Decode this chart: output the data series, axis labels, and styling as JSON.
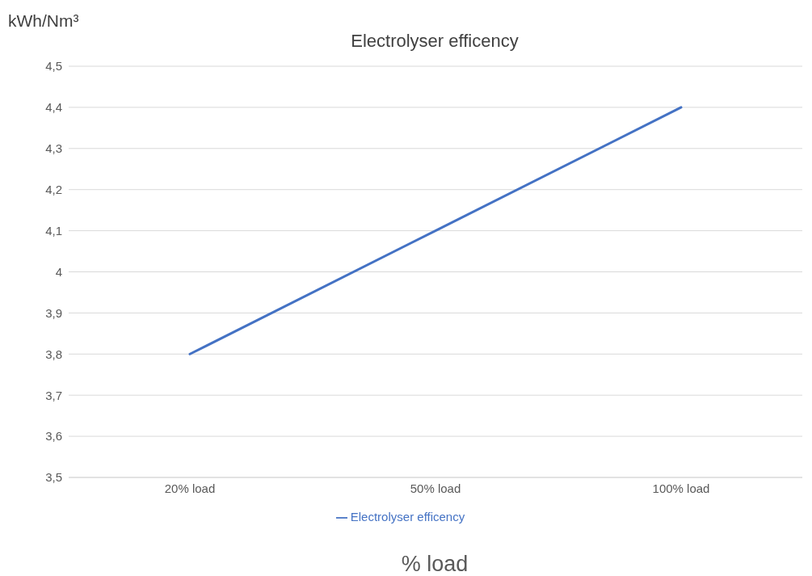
{
  "chart_data": {
    "type": "line",
    "title": "Electrolyser efficency",
    "ylabel": "kWh/Nm³",
    "xlabel": "% load",
    "categories": [
      "20% load",
      "50% load",
      "100% load"
    ],
    "series": [
      {
        "name": "Electrolyser efficency",
        "color": "#4472c4",
        "values": [
          3.8,
          4.1,
          4.4
        ]
      }
    ],
    "ylim": [
      3.5,
      4.5
    ],
    "yticks": [
      {
        "value": 3.5,
        "label": "3,5"
      },
      {
        "value": 3.6,
        "label": "3,6"
      },
      {
        "value": 3.7,
        "label": "3,7"
      },
      {
        "value": 3.8,
        "label": "3,8"
      },
      {
        "value": 3.9,
        "label": "3,9"
      },
      4,
      {
        "value": 4.1,
        "label": "4,1"
      },
      {
        "value": 4.2,
        "label": "4,2"
      },
      {
        "value": 4.3,
        "label": "4,3"
      },
      {
        "value": 4.4,
        "label": "4,4"
      },
      {
        "value": 4.5,
        "label": "4,5"
      }
    ],
    "grid": "y",
    "legend": "bottom",
    "marker": "none",
    "line_style": "solid"
  }
}
